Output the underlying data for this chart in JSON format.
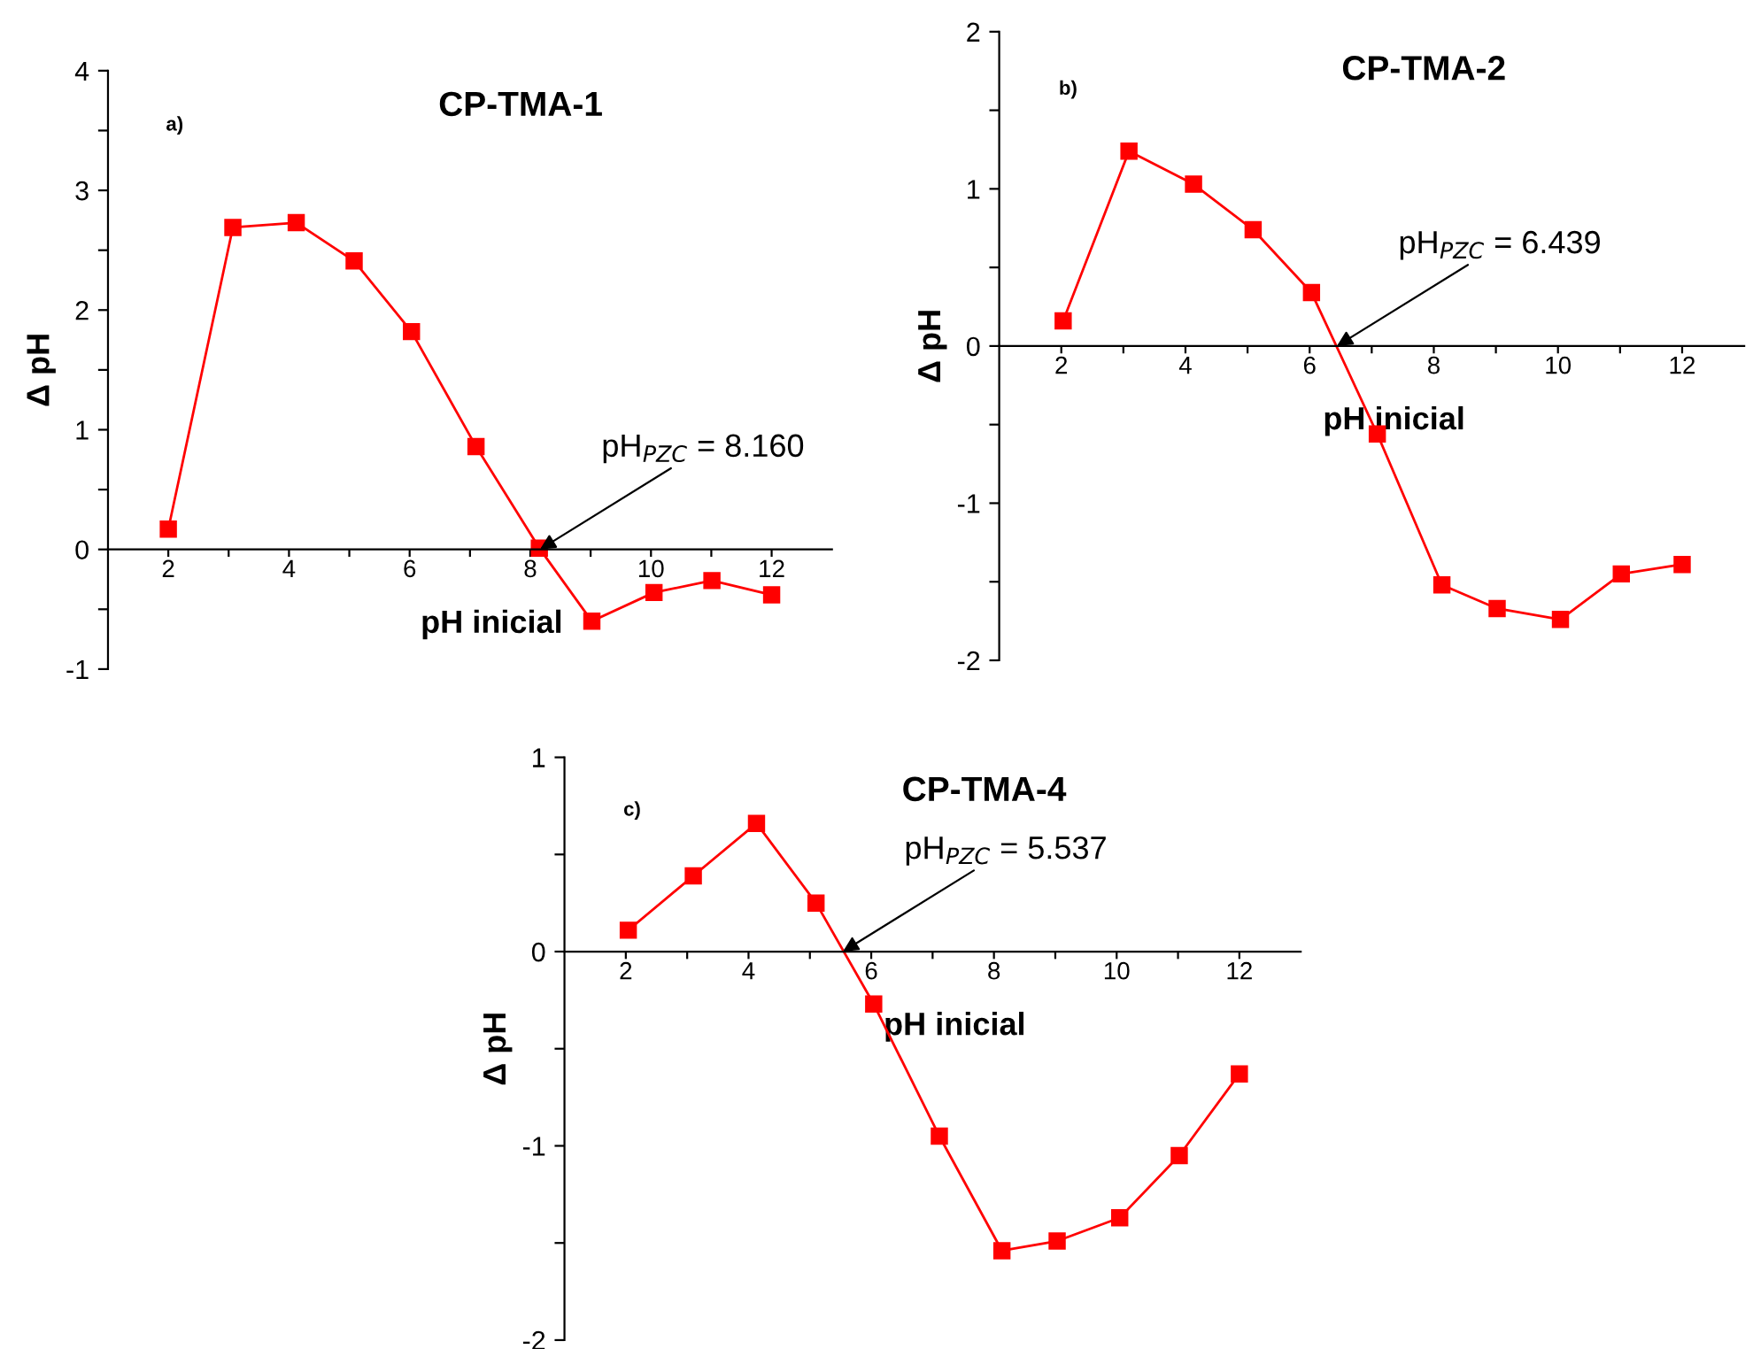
{
  "chart_data": [
    {
      "type": "line",
      "title": "CP-TMA-1",
      "xlabel": "pH inicial",
      "ylabel": "Δ pH",
      "marker": "square",
      "x": [
        2.0,
        3.07,
        4.12,
        5.08,
        6.03,
        7.1,
        8.15,
        9.02,
        10.05,
        11.01,
        12.0
      ],
      "series": [
        {
          "color": "#ff0000",
          "values": [
            0.17,
            2.69,
            2.73,
            2.41,
            1.82,
            0.86,
            0.01,
            -0.6,
            -0.36,
            -0.26,
            -0.38
          ]
        }
      ],
      "xlim": [
        1,
        13
      ],
      "ylim": [
        -1,
        4
      ],
      "xticks": [
        2,
        {
          "value": 3,
          "label": null
        },
        4,
        {
          "value": 5,
          "label": null
        },
        6,
        {
          "value": 7,
          "label": null
        },
        8,
        {
          "value": 9,
          "label": null
        },
        10,
        {
          "value": 11,
          "label": null
        },
        12
      ],
      "yticks": [
        {
          "value": -1,
          "label": "-1"
        },
        {
          "value": -0.5,
          "label": null
        },
        0,
        {
          "value": 0.5,
          "label": null
        },
        1,
        {
          "value": 1.5,
          "label": null
        },
        2,
        {
          "value": 2.5,
          "label": null
        },
        3,
        {
          "value": 3.5,
          "label": null
        },
        4
      ],
      "annotations": [
        "a)",
        {
          "text": "pH$_{PZC}$ = 8.160",
          "x": 8.16,
          "y": 0
        }
      ]
    },
    {
      "type": "line",
      "title": "CP-TMA-2",
      "xlabel": "pH inicial",
      "ylabel": "Δ pH",
      "marker": "square",
      "x": [
        2.03,
        3.09,
        4.13,
        5.09,
        6.03,
        7.09,
        8.13,
        9.02,
        10.04,
        11.02,
        12.0
      ],
      "series": [
        {
          "color": "#ff0000",
          "values": [
            0.16,
            1.24,
            1.03,
            0.74,
            0.34,
            -0.56,
            -1.52,
            -1.67,
            -1.74,
            -1.45,
            -1.39
          ]
        }
      ],
      "xlim": [
        1,
        13
      ],
      "ylim": [
        -2,
        2
      ],
      "xticks": [
        2,
        {
          "value": 3,
          "label": null
        },
        4,
        {
          "value": 5,
          "label": null
        },
        6,
        {
          "value": 7,
          "label": null
        },
        8,
        {
          "value": 9,
          "label": null
        },
        10,
        {
          "value": 11,
          "label": null
        },
        12
      ],
      "yticks": [
        {
          "value": -2,
          "label": "-2"
        },
        {
          "value": -1.5,
          "label": null
        },
        {
          "value": -1,
          "label": "-1"
        },
        {
          "value": -0.5,
          "label": null
        },
        0,
        {
          "value": 0.5,
          "label": null
        },
        1,
        {
          "value": 1.5,
          "label": null
        },
        2
      ],
      "annotations": [
        "b)",
        {
          "text": "pH$_{PZC}$ = 6.439",
          "x": 6.439,
          "y": 0
        }
      ]
    },
    {
      "type": "line",
      "title": "CP-TMA-4",
      "xlabel": "pH inicial",
      "ylabel": "Δ pH",
      "marker": "square",
      "x": [
        2.04,
        3.1,
        4.13,
        5.1,
        6.04,
        7.11,
        8.13,
        9.03,
        10.05,
        11.02,
        12.0
      ],
      "series": [
        {
          "color": "#ff0000",
          "values": [
            0.11,
            0.39,
            0.66,
            0.25,
            -0.27,
            -0.95,
            -1.54,
            -1.49,
            -1.37,
            -1.05,
            -0.63
          ]
        }
      ],
      "xlim": [
        1,
        13
      ],
      "ylim": [
        -2,
        1
      ],
      "xticks": [
        2,
        {
          "value": 3,
          "label": null
        },
        4,
        {
          "value": 5,
          "label": null
        },
        6,
        {
          "value": 7,
          "label": null
        },
        8,
        {
          "value": 9,
          "label": null
        },
        10,
        {
          "value": 11,
          "label": null
        },
        12
      ],
      "yticks": [
        {
          "value": -2,
          "label": "-2"
        },
        {
          "value": -1.5,
          "label": null
        },
        {
          "value": -1,
          "label": "-1"
        },
        {
          "value": -0.5,
          "label": null
        },
        0,
        {
          "value": 0.5,
          "label": null
        },
        1
      ],
      "annotations": [
        "c)",
        {
          "text": "pH$_{PZC}$ = 5.537",
          "x": 5.537,
          "y": 0
        }
      ]
    }
  ]
}
